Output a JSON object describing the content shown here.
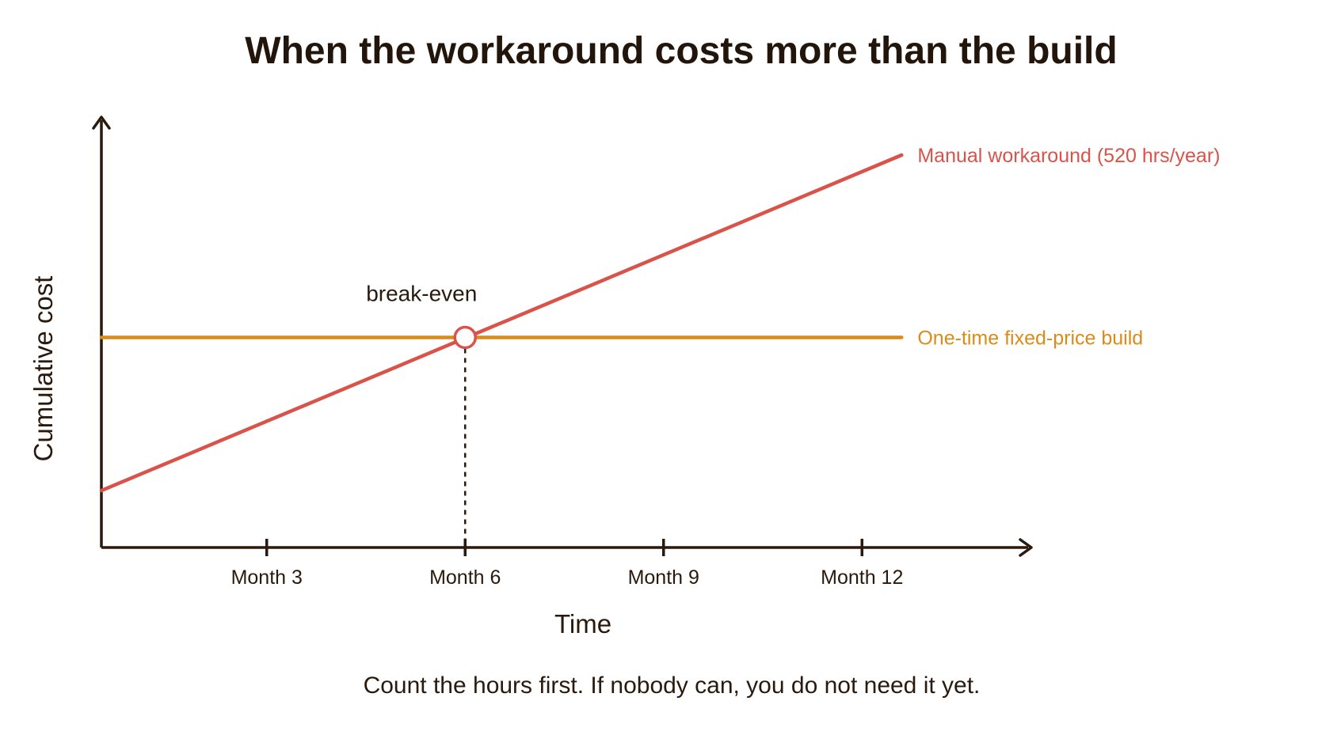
{
  "chart_data": {
    "type": "line",
    "title": "When the workaround costs more than the build",
    "xlabel": "Time",
    "ylabel": "Cumulative cost",
    "x_ticks": [
      {
        "x": 3,
        "label": "Month 3"
      },
      {
        "x": 6,
        "label": "Month 6"
      },
      {
        "x": 9,
        "label": "Month 9"
      },
      {
        "x": 12,
        "label": "Month 12"
      }
    ],
    "xlim": [
      0.5,
      13.5
    ],
    "ylim": [
      0,
      100
    ],
    "grid": false,
    "series": [
      {
        "name": "Manual workaround (520 hrs/year)",
        "color": "#d9534a",
        "x": [
          0.5,
          12.6
        ],
        "y": [
          8,
          100
        ]
      },
      {
        "name": "One-time fixed-price build",
        "color": "#d98c1a",
        "x": [
          0.5,
          12.6
        ],
        "y": [
          50,
          50
        ]
      }
    ],
    "annotations": [
      {
        "label": "break-even",
        "x": 6,
        "y": 50
      }
    ]
  },
  "caption": "Count the hours first. If nobody can, you do not need it yet.",
  "colors": {
    "axis": "#2a1a0e",
    "marker_fill": "#ffffff"
  }
}
